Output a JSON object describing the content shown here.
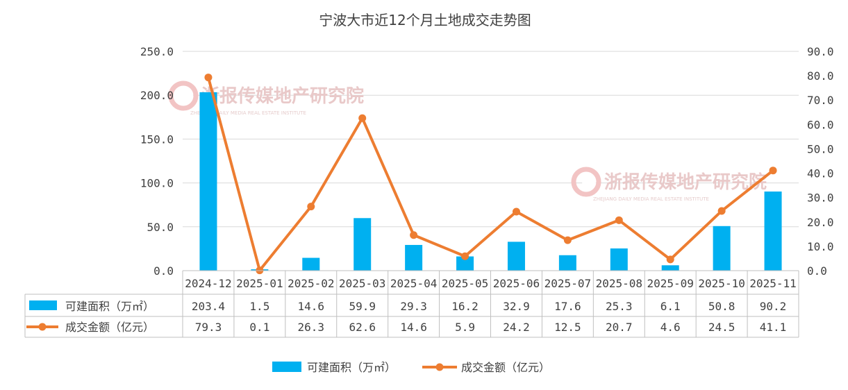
{
  "chart_data": {
    "type": "bar+line",
    "title": "宁波大市近12个月土地成交走势图",
    "categories": [
      "2024-12",
      "2025-01",
      "2025-02",
      "2025-03",
      "2025-04",
      "2025-05",
      "2025-06",
      "2025-07",
      "2025-08",
      "2025-09",
      "2025-10",
      "2025-11"
    ],
    "series": [
      {
        "name": "可建面积（万㎡）",
        "type": "bar",
        "axis": "left",
        "color": "#00b0f0",
        "values": [
          203.4,
          1.5,
          14.6,
          59.9,
          29.3,
          16.2,
          32.9,
          17.6,
          25.3,
          6.1,
          50.8,
          90.2
        ]
      },
      {
        "name": "成交金额（亿元）",
        "type": "line",
        "axis": "right",
        "color": "#ed7d31",
        "values": [
          79.3,
          0.1,
          26.3,
          62.6,
          14.6,
          5.9,
          24.2,
          12.5,
          20.7,
          4.6,
          24.5,
          41.1
        ]
      }
    ],
    "left_axis": {
      "ylim": [
        0,
        250
      ],
      "ticks": [
        "0.0",
        "50.0",
        "100.0",
        "150.0",
        "200.0",
        "250.0"
      ]
    },
    "right_axis": {
      "ylim": [
        0,
        90
      ],
      "ticks": [
        "0.0",
        "10.0",
        "20.0",
        "30.0",
        "40.0",
        "50.0",
        "60.0",
        "70.0",
        "80.0",
        "90.0"
      ]
    },
    "grid": true,
    "legend_position": "bottom",
    "data_table": true
  },
  "watermark": {
    "text": "浙报传媒地产研究院",
    "subtext": "ZHEJIANG DAILY MEDIA REAL ESTATE INSTITUTE"
  }
}
